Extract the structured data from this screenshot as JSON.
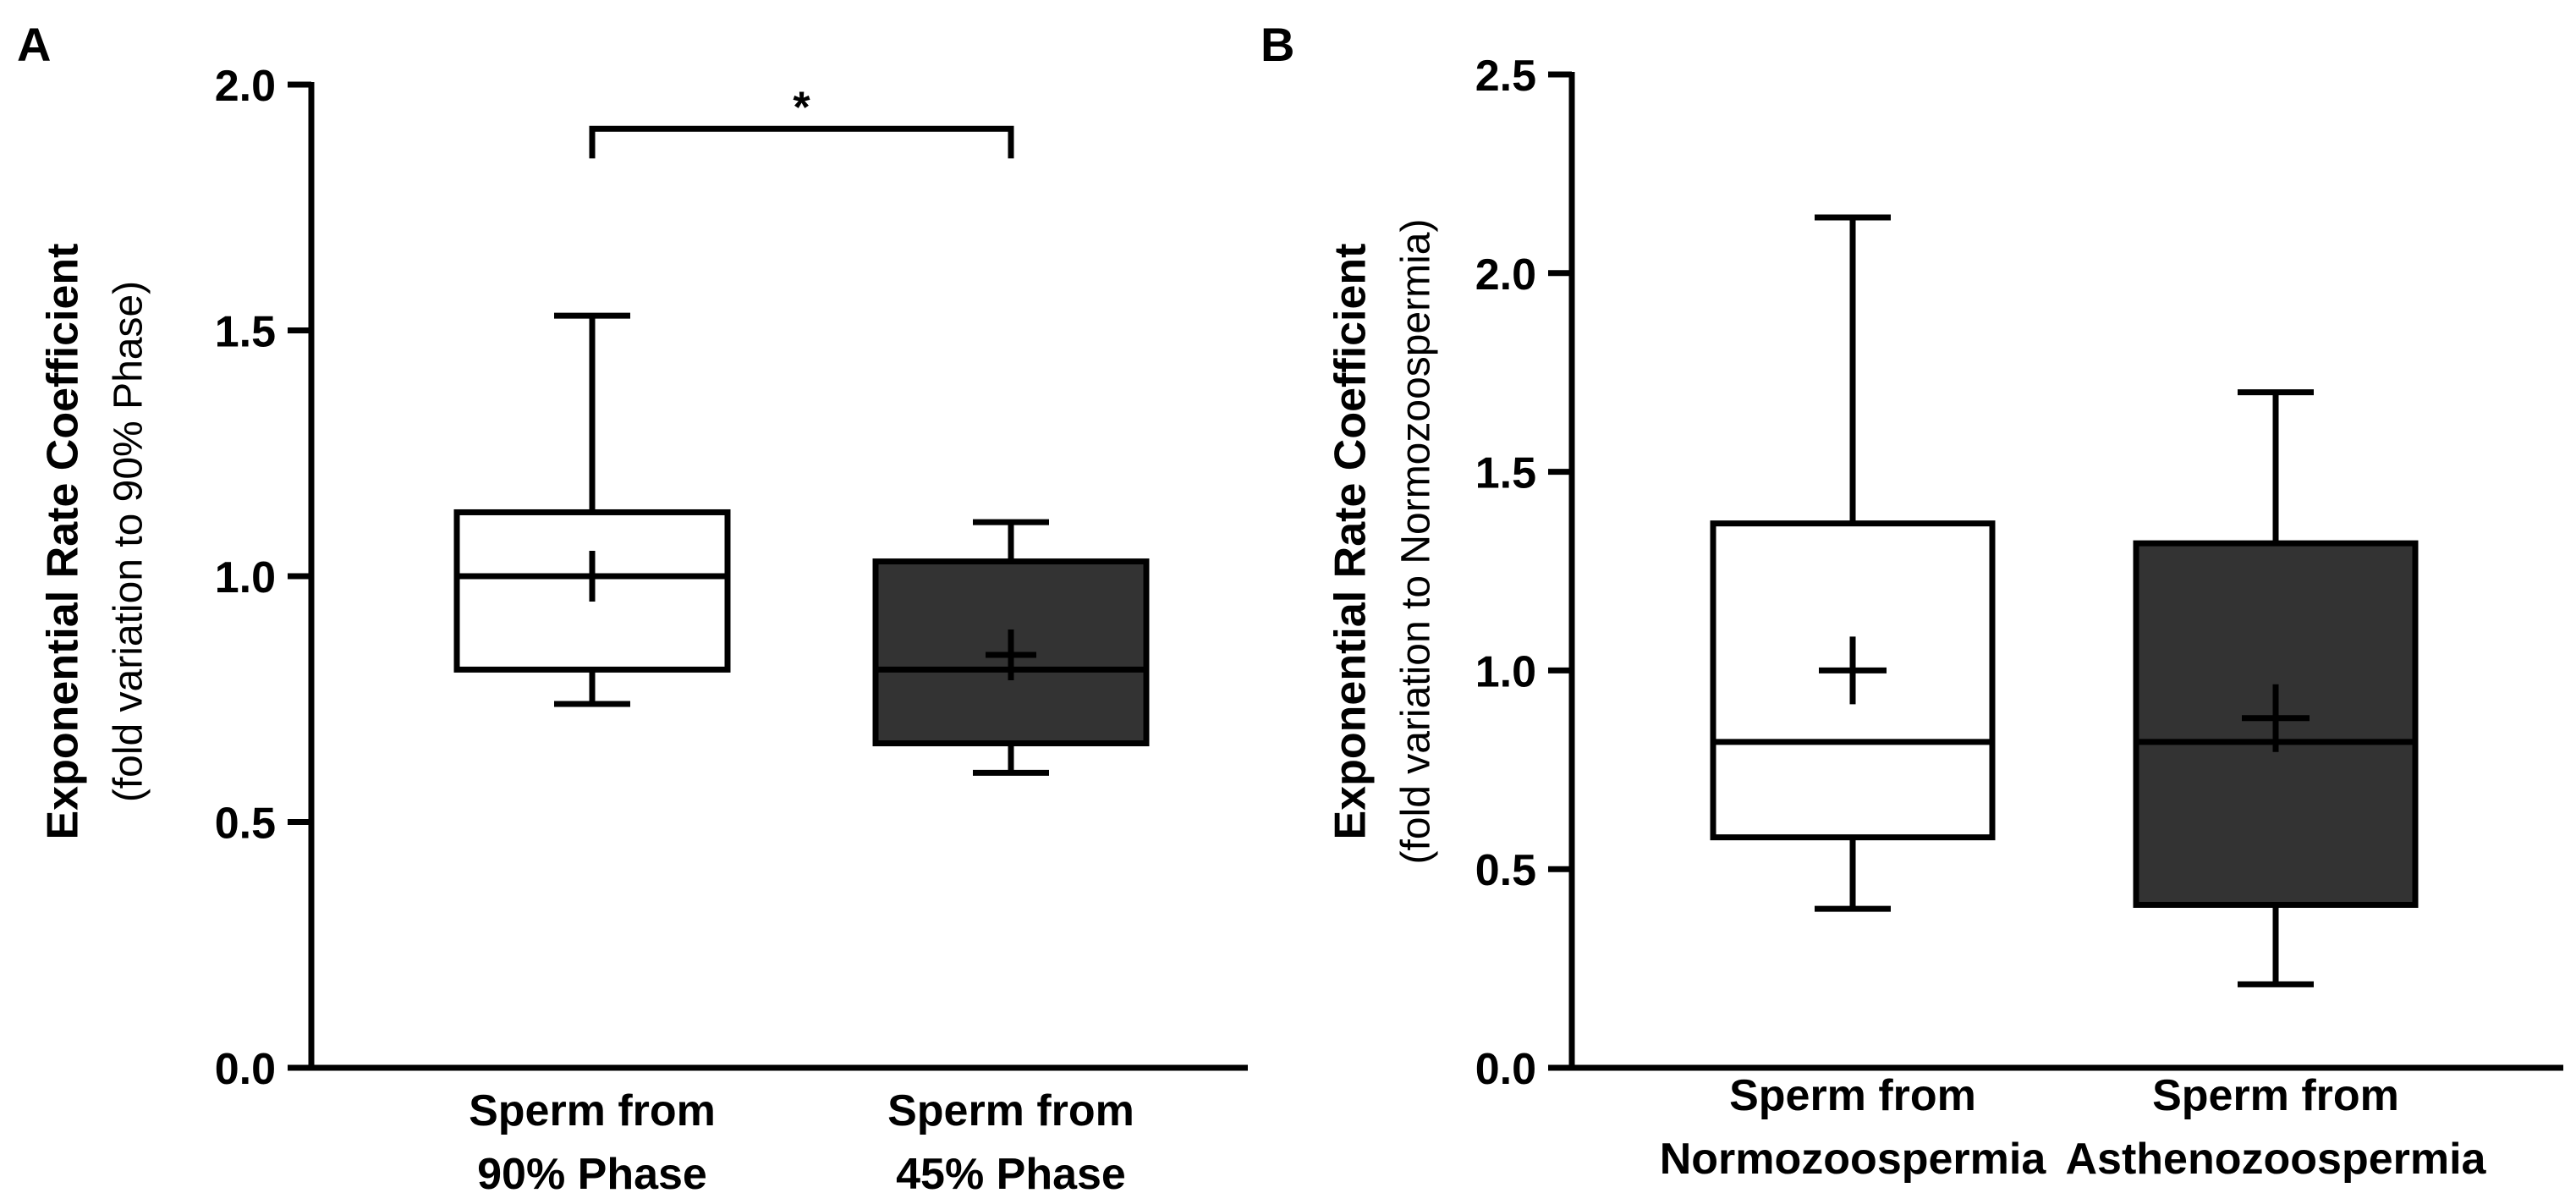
{
  "chart_data": [
    {
      "panel": "A",
      "type": "box",
      "title": "",
      "ylabel": "Exponential Rate Coefficient",
      "ylabel_sub": "(fold variation to 90% Phase)",
      "xlabel": "",
      "ylim": [
        0,
        2
      ],
      "yticks": [
        "0.0",
        "0.5",
        "1.0",
        "1.5",
        "2.0"
      ],
      "ytick_values": [
        0,
        0.5,
        1.0,
        1.5,
        2.0
      ],
      "grid": false,
      "groups": [
        {
          "label": [
            "Sperm from",
            "90% Phase"
          ],
          "whisker_low": 0.74,
          "q1": 0.81,
          "median": 1.0,
          "q3": 1.13,
          "whisker_high": 1.53,
          "mean": 1.0,
          "fill": "#ffffff"
        },
        {
          "label": [
            "Sperm from",
            "45% Phase"
          ],
          "whisker_low": 0.6,
          "q1": 0.66,
          "median": 0.81,
          "q3": 1.03,
          "whisker_high": 1.11,
          "mean": 0.84,
          "fill": "#333333"
        }
      ],
      "significance": {
        "from": 0,
        "to": 1,
        "y": 1.91,
        "label": "*"
      }
    },
    {
      "panel": "B",
      "type": "box",
      "title": "",
      "ylabel": "Exponential Rate Coefficient",
      "ylabel_sub": "(fold variation to Normozoospermia)",
      "xlabel": "",
      "ylim": [
        0,
        2.5
      ],
      "yticks": [
        "0.0",
        "0.5",
        "1.0",
        "1.5",
        "2.0",
        "2.5"
      ],
      "ytick_values": [
        0,
        0.5,
        1.0,
        1.5,
        2.0,
        2.5
      ],
      "grid": false,
      "groups": [
        {
          "label": [
            "Sperm from",
            "Normozoospermia"
          ],
          "whisker_low": 0.4,
          "q1": 0.58,
          "median": 0.82,
          "q3": 1.37,
          "whisker_high": 2.14,
          "mean": 1.0,
          "fill": "#ffffff"
        },
        {
          "label": [
            "Sperm from",
            "Asthenozoospermia"
          ],
          "whisker_low": 0.21,
          "q1": 0.41,
          "median": 0.82,
          "q3": 1.32,
          "whisker_high": 1.7,
          "mean": 0.88,
          "fill": "#333333"
        }
      ]
    }
  ],
  "colors": {
    "axis": "#000000",
    "dark_box": "#333333",
    "light_box": "#ffffff"
  }
}
